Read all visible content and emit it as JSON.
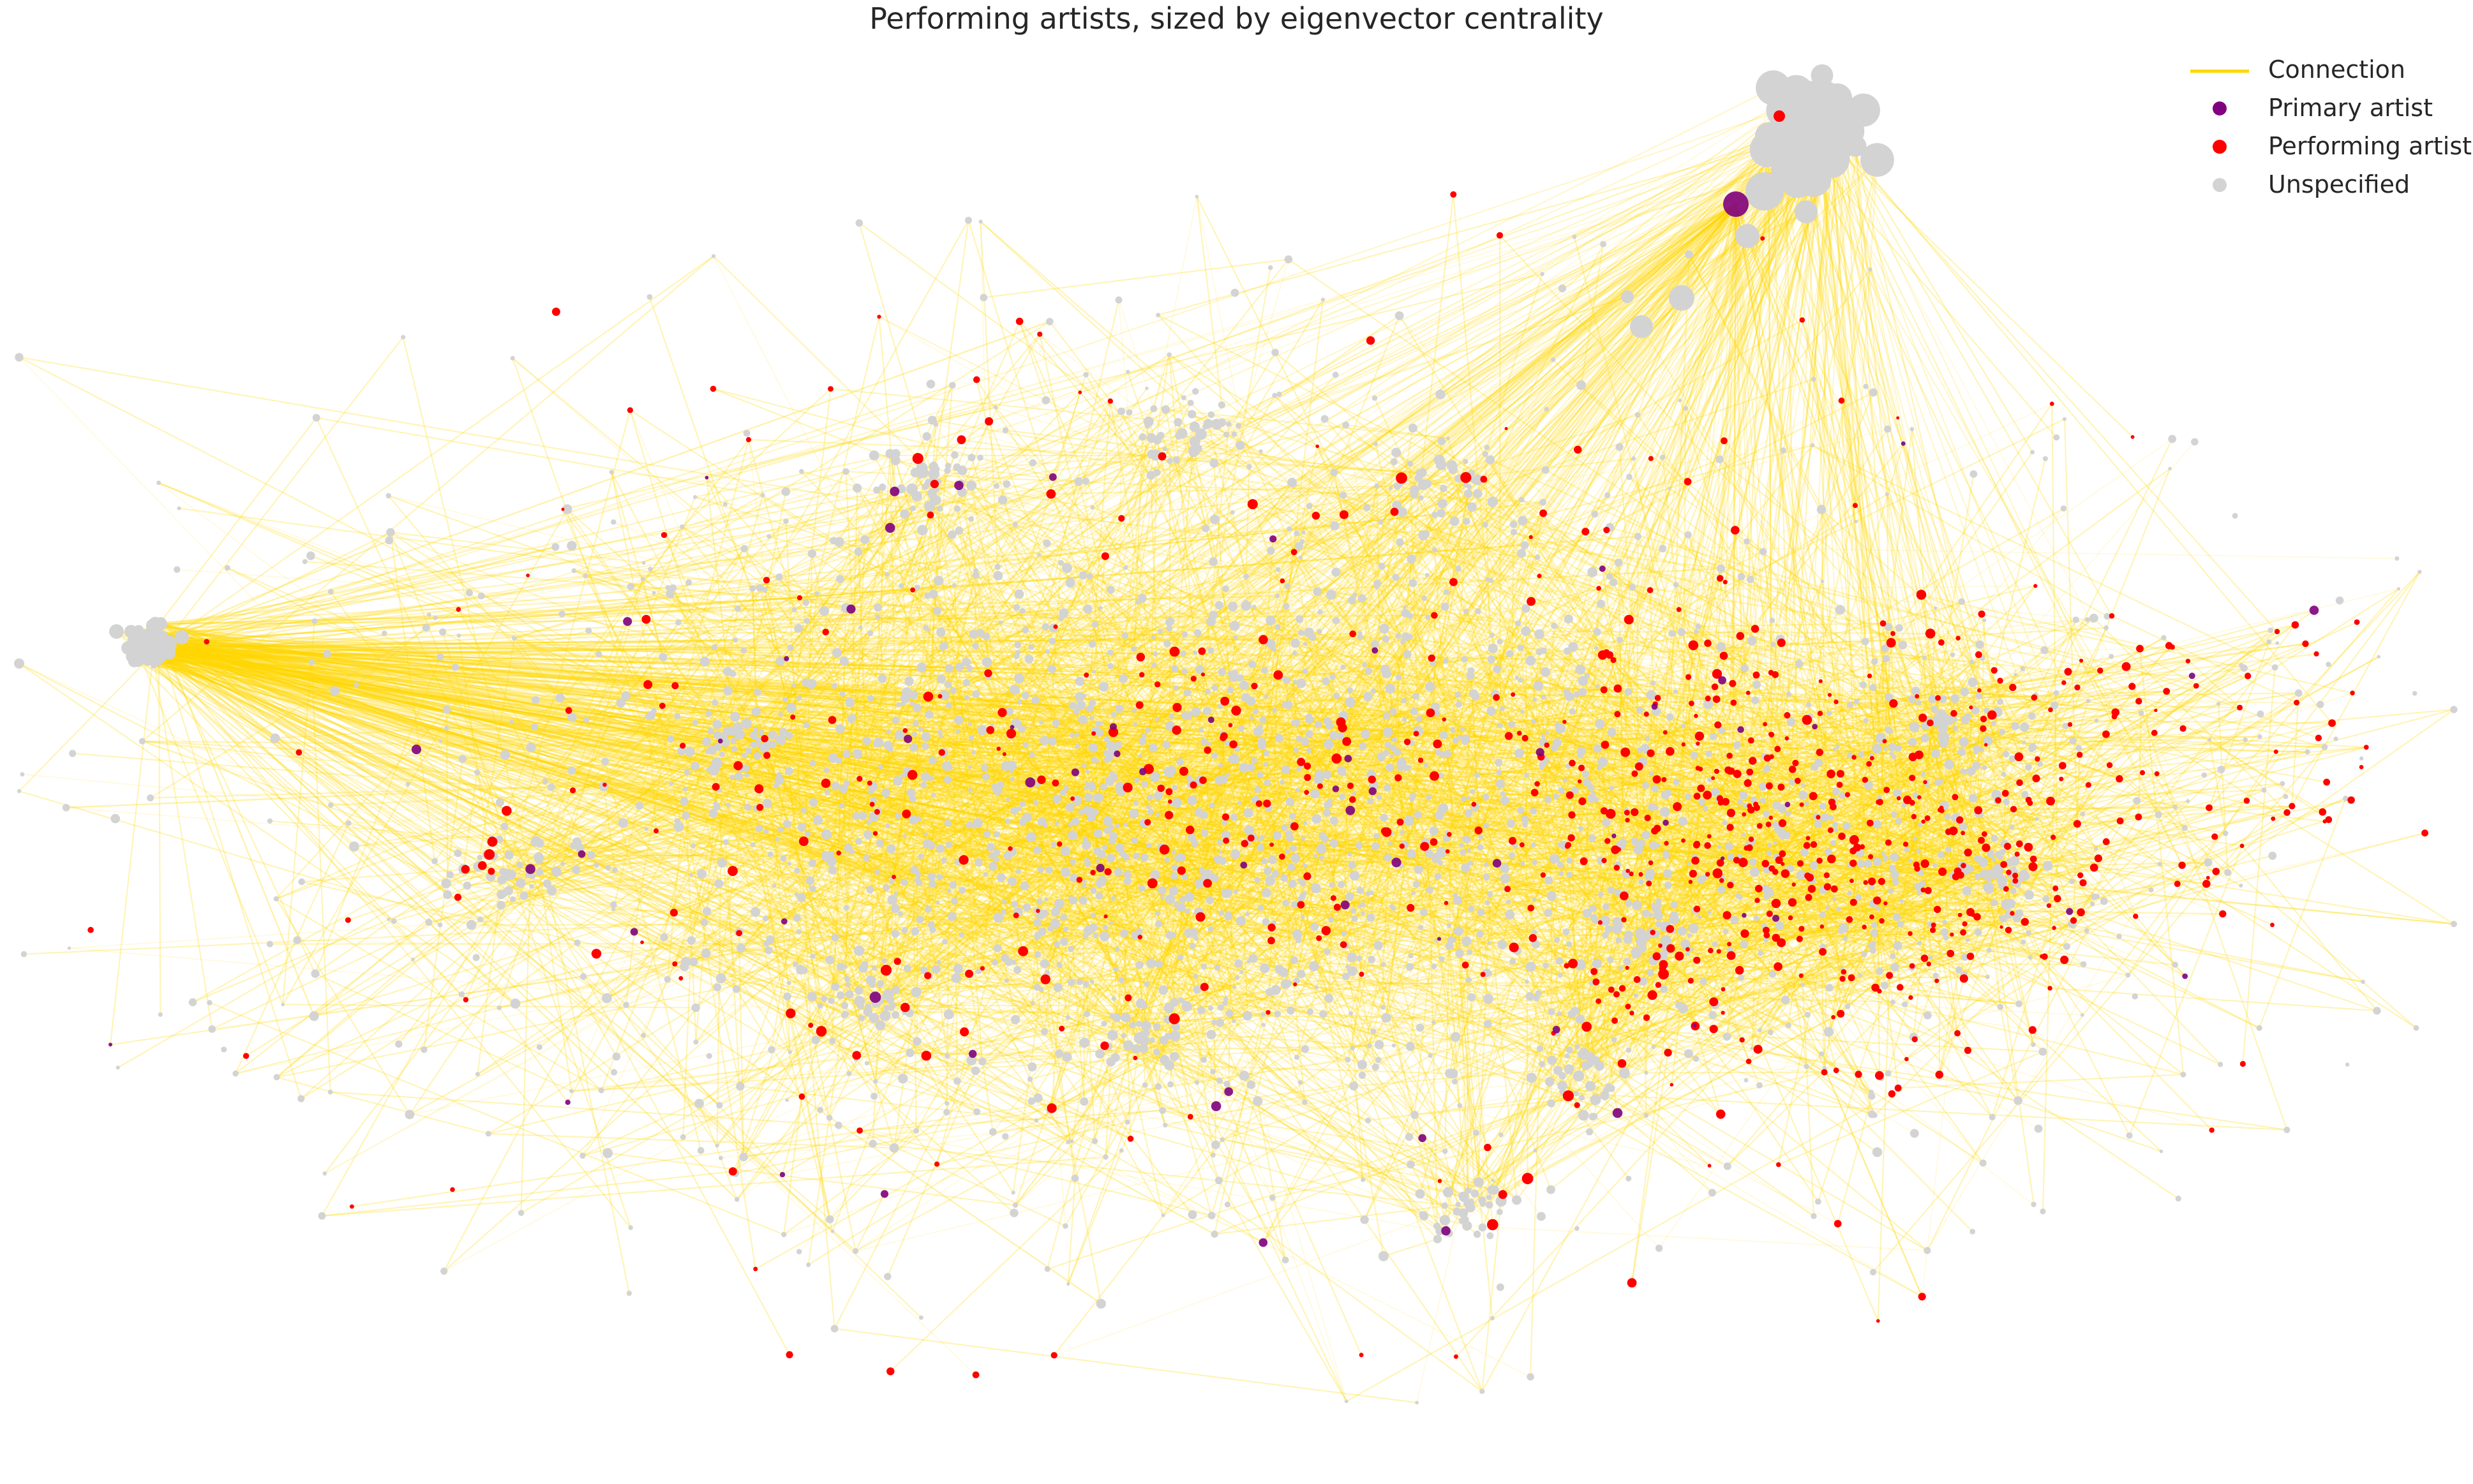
{
  "chart_data": {
    "type": "network",
    "title": "Performing artists, sized by eigenvector centrality",
    "edge_label": "Connection",
    "categories": [
      {
        "name": "Primary artist",
        "color": "#800080"
      },
      {
        "name": "Performing artist",
        "color": "#ff0000"
      },
      {
        "name": "Unspecified",
        "color": "#d3d3d3"
      }
    ],
    "edge_color": "#ffd700",
    "axes_visible": false,
    "legend_position": "top-right"
  }
}
